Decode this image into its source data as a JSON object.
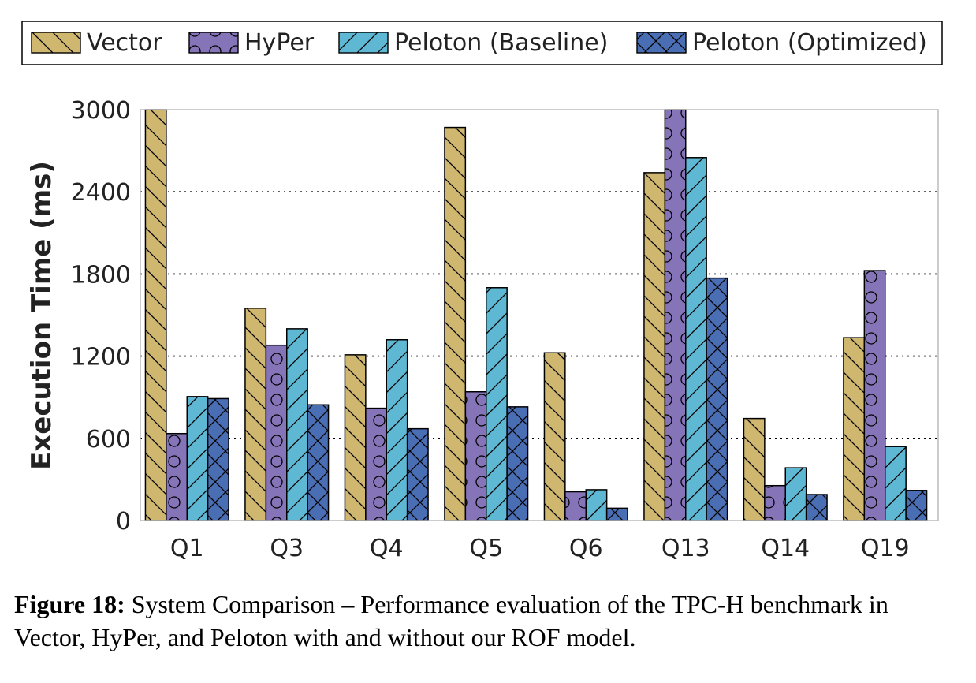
{
  "chart_data": {
    "type": "bar",
    "title": "",
    "xlabel": "",
    "ylabel": "Execution Time (ms)",
    "ylim": [
      0,
      3000
    ],
    "yticks": [
      0,
      600,
      1200,
      1800,
      2400,
      3000
    ],
    "grid": "horizontal dotted",
    "legend_position": "top",
    "categories": [
      "Q1",
      "Q3",
      "Q4",
      "Q5",
      "Q6",
      "Q13",
      "Q14",
      "Q19"
    ],
    "series": [
      {
        "name": "Vector",
        "color": "#cfb770",
        "hatch": "diagonal-back",
        "values": [
          3000,
          1550,
          1210,
          2870,
          1225,
          2540,
          745,
          1335
        ]
      },
      {
        "name": "HyPer",
        "color": "#8575b8",
        "hatch": "circles",
        "values": [
          635,
          1280,
          820,
          940,
          210,
          3000,
          255,
          1825
        ]
      },
      {
        "name": "Peloton (Baseline)",
        "color": "#5fb8d3",
        "hatch": "diagonal-forward",
        "values": [
          905,
          1400,
          1320,
          1700,
          225,
          2650,
          385,
          540
        ]
      },
      {
        "name": "Peloton (Optimized)",
        "color": "#4a6eb3",
        "hatch": "cross",
        "values": [
          890,
          845,
          670,
          830,
          90,
          1770,
          190,
          220
        ]
      }
    ]
  },
  "caption": {
    "label": "Figure 18:",
    "text": "System Comparison – Performance evaluation of the TPC-H benchmark in Vector, HyPer, and Peloton with and without our ROF model."
  }
}
